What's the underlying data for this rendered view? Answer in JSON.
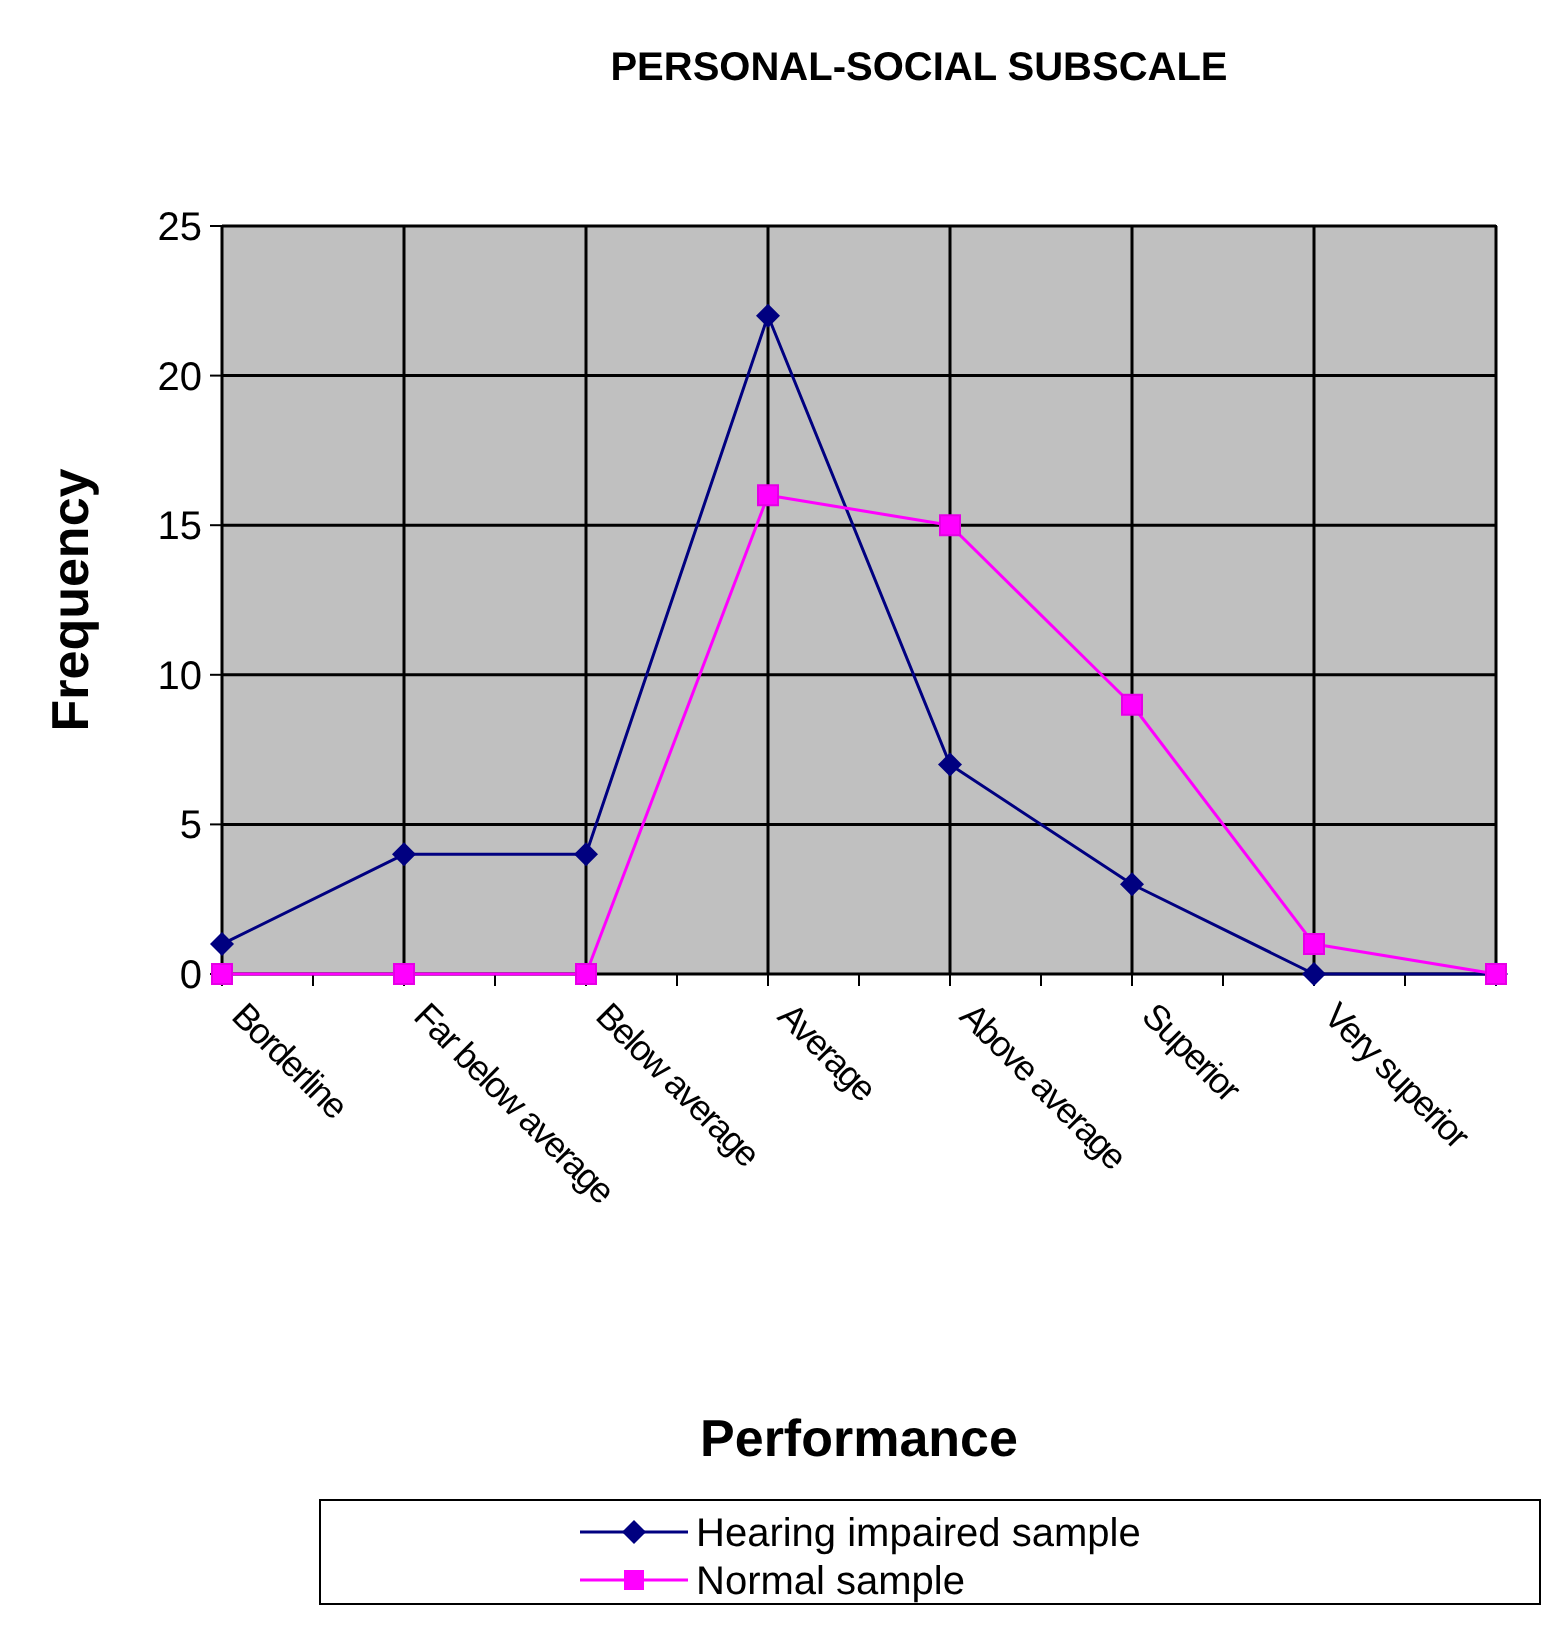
{
  "chart_data": {
    "type": "line",
    "title": "PERSONAL-SOCIAL SUBSCALE",
    "xlabel": "Performance",
    "ylabel": "Frequency",
    "categories": [
      "Borderline",
      "Far below average",
      "Below average",
      "Average",
      "Above average",
      "Superior",
      "Very superior",
      null
    ],
    "series": [
      {
        "name": "Hearing impaired sample",
        "color": "#000080",
        "marker": "diamond",
        "values": [
          1,
          4,
          4,
          22,
          7,
          3,
          0,
          0
        ]
      },
      {
        "name": "Normal sample",
        "color": "#ff00ff",
        "marker": "square",
        "values": [
          0,
          0,
          0,
          16,
          15,
          9,
          1,
          0
        ]
      }
    ],
    "ylim": [
      0,
      25
    ],
    "yticks": [
      0,
      5,
      10,
      15,
      20,
      25
    ],
    "grid": true,
    "legend": "bottom",
    "line_style": "solid"
  }
}
